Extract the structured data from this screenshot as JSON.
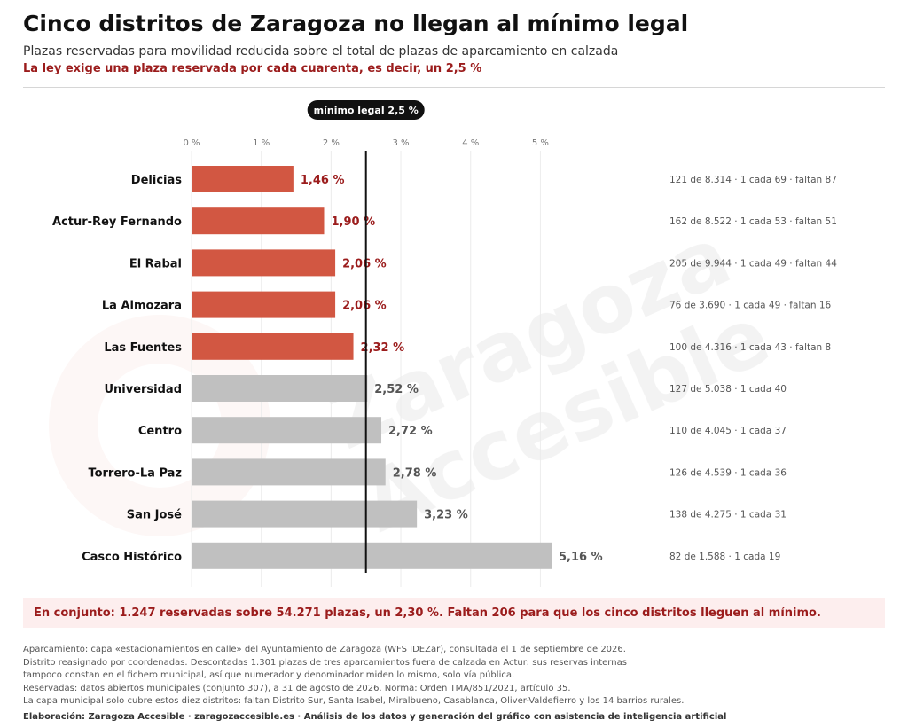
{
  "header": {
    "title": "Cinco distritos de Zaragoza no llegan al mínimo legal",
    "subtitle": "Plazas reservadas para movilidad reducida sobre el total de plazas de aparcamiento en calzada",
    "highlight": "La ley exige una plaza reservada por cada cuarenta, es decir, un 2,5 %"
  },
  "watermark": "Zaragoza Accesible",
  "chart_data": {
    "type": "bar",
    "orientation": "horizontal",
    "xlim": [
      0,
      5.16
    ],
    "ticks": [
      {
        "value": 0,
        "label": "0 %"
      },
      {
        "value": 1,
        "label": "1 %"
      },
      {
        "value": 2,
        "label": "2 %"
      },
      {
        "value": 3,
        "label": "3 %"
      },
      {
        "value": 4,
        "label": "4 %"
      },
      {
        "value": 5,
        "label": "5 %"
      }
    ],
    "grid": true,
    "reference_line": {
      "value": 2.5,
      "label": "mínimo legal 2,5 %"
    },
    "colors": {
      "below": "#d25742",
      "above": "#c0c0c0",
      "below_label": "#9b1c1c",
      "above_label": "#555555",
      "reference": "#111111"
    },
    "bars": [
      {
        "category": "Delicias",
        "value": 1.46,
        "label": "1,46 %",
        "below": true,
        "detail": "121 de 8.314 · 1 cada 69 · faltan 87"
      },
      {
        "category": "Actur-Rey Fernando",
        "value": 1.9,
        "label": "1,90 %",
        "below": true,
        "detail": "162 de 8.522 · 1 cada 53 · faltan 51"
      },
      {
        "category": "El Rabal",
        "value": 2.06,
        "label": "2,06 %",
        "below": true,
        "detail": "205 de 9.944 · 1 cada 49 · faltan 44"
      },
      {
        "category": "La Almozara",
        "value": 2.06,
        "label": "2,06 %",
        "below": true,
        "detail": "76 de 3.690 · 1 cada 49 · faltan 16"
      },
      {
        "category": "Las Fuentes",
        "value": 2.32,
        "label": "2,32 %",
        "below": true,
        "detail": "100 de 4.316 · 1 cada 43 · faltan 8"
      },
      {
        "category": "Universidad",
        "value": 2.52,
        "label": "2,52 %",
        "below": false,
        "detail": "127 de 5.038 · 1 cada 40"
      },
      {
        "category": "Centro",
        "value": 2.72,
        "label": "2,72 %",
        "below": false,
        "detail": "110 de 4.045 · 1 cada 37"
      },
      {
        "category": "Torrero-La Paz",
        "value": 2.78,
        "label": "2,78 %",
        "below": false,
        "detail": "126 de 4.539 · 1 cada 36"
      },
      {
        "category": "San José",
        "value": 3.23,
        "label": "3,23 %",
        "below": false,
        "detail": "138 de 4.275 · 1 cada 31"
      },
      {
        "category": "Casco Histórico",
        "value": 5.16,
        "label": "5,16 %",
        "below": false,
        "detail": "82 de 1.588 · 1 cada 19"
      }
    ]
  },
  "summary": "En conjunto: 1.247 reservadas sobre 54.271 plazas, un 2,30 %. Faltan 206 para que los cinco distritos lleguen al mínimo.",
  "notes": [
    "Aparcamiento: capa «estacionamientos en calle» del Ayuntamiento de Zaragoza (WFS IDEZar), consultada el 1 de septiembre de 2026.",
    "Distrito reasignado por coordenadas. Descontadas 1.301 plazas de tres aparcamientos fuera de calzada en Actur: sus reservas internas",
    "tampoco constan en el fichero municipal, así que numerador y denominador miden lo mismo, solo vía pública.",
    "Reservadas: datos abiertos municipales (conjunto 307), a 31 de agosto de 2026. Norma: Orden TMA/851/2021, artículo 35.",
    "La capa municipal solo cubre estos diez distritos: faltan Distrito Sur, Santa Isabel, Miralbueno, Casablanca, Oliver-Valdefierro y los 14 barrios rurales."
  ],
  "credit": "Elaboración: Zaragoza Accesible · zaragozaccesible.es · Análisis de los datos y generación del gráfico con asistencia de inteligencia artificial"
}
